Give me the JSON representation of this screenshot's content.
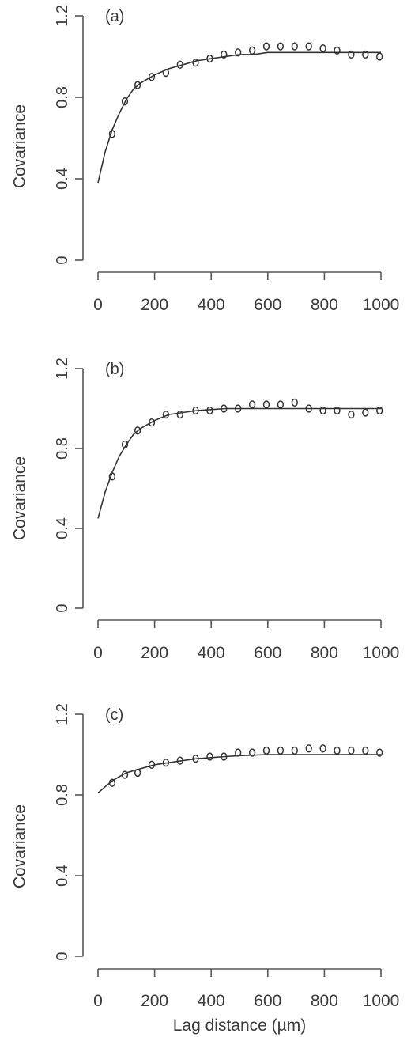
{
  "chart_data": [
    {
      "type": "scatter",
      "panel_label": "(a)",
      "ylabel": "Covariance",
      "xlabel": "",
      "xlim": [
        0,
        1000
      ],
      "ylim": [
        0,
        1.2
      ],
      "x_ticks": [
        "0",
        "200",
        "400",
        "600",
        "800",
        "1000"
      ],
      "y_ticks": [
        "0",
        "0.4",
        "0.8",
        "1.2"
      ],
      "series": [
        {
          "kind": "points",
          "x": [
            50,
            95,
            140,
            190,
            240,
            290,
            345,
            395,
            445,
            495,
            545,
            595,
            645,
            695,
            745,
            795,
            845,
            895,
            945,
            995
          ],
          "y": [
            0.62,
            0.78,
            0.86,
            0.9,
            0.92,
            0.96,
            0.97,
            0.99,
            1.01,
            1.02,
            1.03,
            1.05,
            1.05,
            1.05,
            1.05,
            1.04,
            1.03,
            1.01,
            1.01,
            1.0
          ]
        },
        {
          "kind": "fit",
          "x": [
            0,
            25,
            50,
            75,
            100,
            125,
            150,
            200,
            250,
            300,
            350,
            400,
            450,
            500,
            550,
            600,
            700,
            800,
            900,
            1000
          ],
          "y": [
            0.38,
            0.53,
            0.64,
            0.72,
            0.79,
            0.84,
            0.87,
            0.91,
            0.94,
            0.96,
            0.98,
            0.99,
            1.0,
            1.01,
            1.01,
            1.02,
            1.02,
            1.02,
            1.02,
            1.02
          ]
        }
      ]
    },
    {
      "type": "scatter",
      "panel_label": "(b)",
      "ylabel": "Covariance",
      "xlabel": "",
      "xlim": [
        0,
        1000
      ],
      "ylim": [
        0,
        1.2
      ],
      "x_ticks": [
        "0",
        "200",
        "400",
        "600",
        "800",
        "1000"
      ],
      "y_ticks": [
        "0",
        "0.4",
        "0.8",
        "1.2"
      ],
      "series": [
        {
          "kind": "points",
          "x": [
            50,
            95,
            140,
            190,
            240,
            290,
            345,
            395,
            445,
            495,
            545,
            595,
            645,
            695,
            745,
            795,
            845,
            895,
            945,
            995
          ],
          "y": [
            0.66,
            0.82,
            0.89,
            0.93,
            0.97,
            0.97,
            0.99,
            0.99,
            1.0,
            1.0,
            1.02,
            1.02,
            1.02,
            1.03,
            1.0,
            0.99,
            0.99,
            0.97,
            0.98,
            0.99
          ]
        },
        {
          "kind": "fit",
          "x": [
            0,
            25,
            50,
            75,
            100,
            125,
            150,
            200,
            250,
            300,
            350,
            400,
            450,
            500,
            600,
            700,
            800,
            900,
            1000
          ],
          "y": [
            0.45,
            0.58,
            0.68,
            0.76,
            0.82,
            0.87,
            0.9,
            0.94,
            0.97,
            0.98,
            0.99,
            0.995,
            1.0,
            1.0,
            1.0,
            1.0,
            1.0,
            1.0,
            1.0
          ]
        }
      ]
    },
    {
      "type": "scatter",
      "panel_label": "(c)",
      "ylabel": "Covariance",
      "xlabel": "Lag distance (µm)",
      "xlim": [
        0,
        1000
      ],
      "ylim": [
        0,
        1.2
      ],
      "x_ticks": [
        "0",
        "200",
        "400",
        "600",
        "800",
        "1000"
      ],
      "y_ticks": [
        "0",
        "0.4",
        "0.8",
        "1.2"
      ],
      "series": [
        {
          "kind": "points",
          "x": [
            50,
            95,
            140,
            190,
            240,
            290,
            345,
            395,
            445,
            495,
            545,
            595,
            645,
            695,
            745,
            795,
            845,
            895,
            945,
            995
          ],
          "y": [
            0.86,
            0.9,
            0.91,
            0.95,
            0.96,
            0.97,
            0.98,
            0.99,
            0.99,
            1.01,
            1.01,
            1.02,
            1.02,
            1.02,
            1.03,
            1.03,
            1.02,
            1.02,
            1.02,
            1.01
          ]
        },
        {
          "kind": "fit",
          "x": [
            0,
            25,
            50,
            75,
            100,
            150,
            200,
            250,
            300,
            350,
            400,
            450,
            500,
            600,
            700,
            800,
            900,
            1000
          ],
          "y": [
            0.81,
            0.84,
            0.87,
            0.89,
            0.91,
            0.93,
            0.95,
            0.96,
            0.97,
            0.98,
            0.985,
            0.99,
            0.995,
            1.0,
            1.0,
            1.0,
            1.0,
            1.0
          ]
        }
      ]
    }
  ]
}
